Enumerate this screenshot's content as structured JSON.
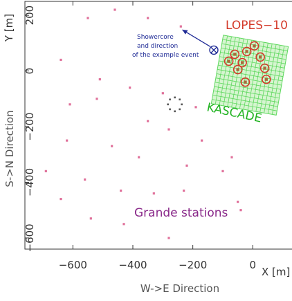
{
  "axes": {
    "xlabel": "W->E Direction",
    "ylabel": "S->N Direction",
    "x_unit_label": "X [m]",
    "y_unit_label": "Y [m]",
    "xlim": [
      -760,
      140
    ],
    "ylim": [
      -640,
      250
    ],
    "x_ticks": [
      {
        "value": -600,
        "label": "−600"
      },
      {
        "value": -400,
        "label": "−400"
      },
      {
        "value": -200,
        "label": "−200"
      },
      {
        "value": 0,
        "label": "0"
      }
    ],
    "y_ticks": [
      {
        "value": 200,
        "label": "200"
      },
      {
        "value": 0,
        "label": "0"
      },
      {
        "value": -200,
        "label": "−200"
      },
      {
        "value": -400,
        "label": "−400"
      },
      {
        "value": -600,
        "label": "−600"
      }
    ]
  },
  "labels": {
    "lopes": "LOPES−10",
    "kascade": "KASCADE",
    "grande": "Grande stations",
    "showercore_lines": [
      "Showercore",
      "and direction",
      "of the example event"
    ]
  },
  "colors": {
    "axis": "#333333",
    "grande_station": "#e0709a",
    "kascade_grid": "#5ed85e",
    "lopes": "#d43a2a",
    "lopes_antenna_fill": "#a86a3a",
    "showercore": "#1f2b96",
    "grande_label": "#8a2a8a",
    "kascade_label": "#22b322",
    "central": "#555555"
  },
  "chart_data": {
    "type": "scatter",
    "grande_stations": [
      {
        "x": -550,
        "y": 190
      },
      {
        "x": -460,
        "y": 220
      },
      {
        "x": -350,
        "y": 190
      },
      {
        "x": -240,
        "y": 160
      },
      {
        "x": -640,
        "y": 40
      },
      {
        "x": -510,
        "y": -30
      },
      {
        "x": -410,
        "y": -60
      },
      {
        "x": -300,
        "y": -80
      },
      {
        "x": -610,
        "y": -120
      },
      {
        "x": -520,
        "y": -100
      },
      {
        "x": -190,
        "y": -130
      },
      {
        "x": -350,
        "y": -180
      },
      {
        "x": -280,
        "y": -210
      },
      {
        "x": -620,
        "y": -250
      },
      {
        "x": -470,
        "y": -270
      },
      {
        "x": -170,
        "y": -250
      },
      {
        "x": -380,
        "y": -310
      },
      {
        "x": -70,
        "y": -310
      },
      {
        "x": -690,
        "y": -360
      },
      {
        "x": -560,
        "y": -390
      },
      {
        "x": -220,
        "y": -340
      },
      {
        "x": -100,
        "y": -360
      },
      {
        "x": -640,
        "y": -460
      },
      {
        "x": -440,
        "y": -430
      },
      {
        "x": -330,
        "y": -440
      },
      {
        "x": -230,
        "y": -430
      },
      {
        "x": -50,
        "y": -470
      },
      {
        "x": -540,
        "y": -530
      },
      {
        "x": -430,
        "y": -550
      },
      {
        "x": -280,
        "y": -600
      },
      {
        "x": -40,
        "y": -500
      }
    ],
    "kascade_array": {
      "x_min": -120,
      "x_max": 100,
      "y_min": -140,
      "y_max": 110,
      "rotation_deg": 10
    },
    "lopes_antennas": [
      {
        "x": 5,
        "y": 90
      },
      {
        "x": -60,
        "y": 60
      },
      {
        "x": -20,
        "y": 70
      },
      {
        "x": 25,
        "y": 50
      },
      {
        "x": -80,
        "y": 35
      },
      {
        "x": -35,
        "y": 30
      },
      {
        "x": 40,
        "y": 10
      },
      {
        "x": -50,
        "y": 5
      },
      {
        "x": 45,
        "y": -30
      },
      {
        "x": -25,
        "y": -40
      }
    ],
    "central_station": {
      "x": -260,
      "y": -120
    },
    "showercore": {
      "x": -130,
      "y": 75
    },
    "showercore_arrow_tip": {
      "x": -235,
      "y": 148
    }
  }
}
